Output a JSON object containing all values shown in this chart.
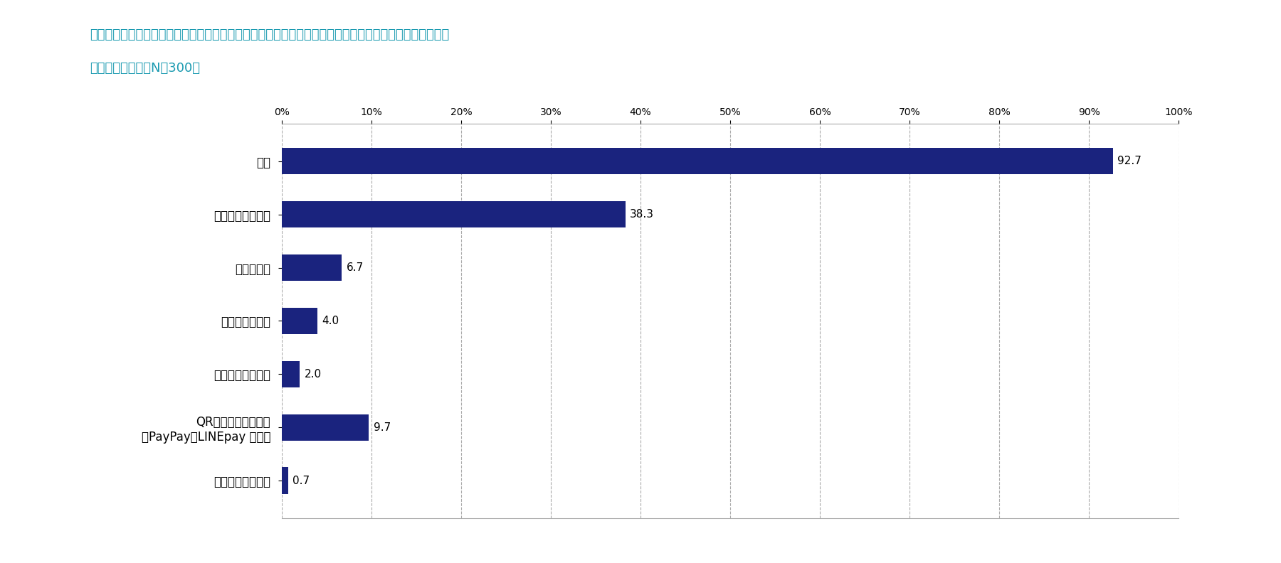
{
  "title_line1": "直近１年間に、医療機関（病院・クリニック・診療所など）を利用した際の支払方法をお選びください。",
  "title_line2": "（いくつでも）（N＝300）",
  "title_color": "#1a9ab0",
  "categories": [
    "現金",
    "クレジットカード",
    "電子マネー",
    "デビットカード",
    "プリペイドカード",
    "QR／バーコード決済\n（PayPay、LINEpay など）",
    "その他の決済方法"
  ],
  "values": [
    92.7,
    38.3,
    6.7,
    4.0,
    2.0,
    9.7,
    0.7
  ],
  "bar_color": "#1a237e",
  "xlim": [
    0,
    100
  ],
  "xticks": [
    0,
    10,
    20,
    30,
    40,
    50,
    60,
    70,
    80,
    90,
    100
  ],
  "xtick_labels": [
    "0%",
    "10%",
    "20%",
    "30%",
    "40%",
    "50%",
    "60%",
    "70%",
    "80%",
    "90%",
    "100%"
  ],
  "value_fontsize": 11,
  "label_fontsize": 12,
  "title_fontsize": 13,
  "background_color": "#ffffff",
  "grid_color": "#aaaaaa",
  "bar_height": 0.5
}
